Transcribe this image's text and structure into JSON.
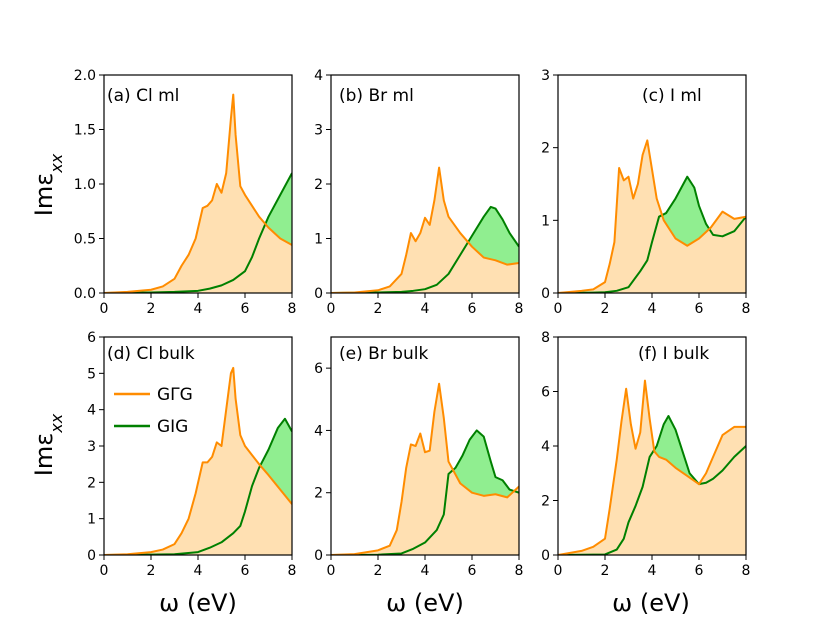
{
  "figure": {
    "xlabel": "ω (eV)",
    "ylabel_main": "Imε",
    "ylabel_sub": "xx",
    "legend": [
      {
        "label": "GΓG",
        "color": "#ff8c00"
      },
      {
        "label": "GIG",
        "color": "#008000"
      }
    ],
    "colors": {
      "orange_line": "#ff8c00",
      "orange_fill": "#ffe0b2",
      "green_line": "#008000",
      "green_fill": "#90ee90"
    }
  },
  "chart_data": [
    {
      "type": "area",
      "title": "(a) Cl ml",
      "xlim": [
        0,
        8
      ],
      "ylim": [
        0,
        2.0
      ],
      "xticks": [
        "0",
        "2",
        "4",
        "6",
        "8"
      ],
      "yticks": [
        "0.0",
        "0.5",
        "1.0",
        "1.5",
        "2.0"
      ],
      "yticks_values": [
        0,
        0.5,
        1.0,
        1.5,
        2.0
      ],
      "series": [
        {
          "name": "GΓG",
          "x": [
            0,
            1,
            2,
            2.5,
            3,
            3.3,
            3.6,
            3.9,
            4.2,
            4.4,
            4.6,
            4.8,
            5.0,
            5.2,
            5.4,
            5.5,
            5.6,
            5.8,
            6.0,
            6.3,
            6.6,
            7.0,
            7.5,
            8.0
          ],
          "values": [
            0,
            0.01,
            0.03,
            0.06,
            0.13,
            0.25,
            0.35,
            0.5,
            0.78,
            0.8,
            0.85,
            1.0,
            0.92,
            1.1,
            1.6,
            1.82,
            1.45,
            0.98,
            0.9,
            0.8,
            0.7,
            0.6,
            0.5,
            0.44
          ]
        },
        {
          "name": "GIG",
          "x": [
            0,
            2,
            3,
            4,
            4.5,
            5,
            5.5,
            6.0,
            6.3,
            6.6,
            7.0,
            7.5,
            8.0
          ],
          "values": [
            0,
            0.005,
            0.01,
            0.02,
            0.04,
            0.07,
            0.12,
            0.2,
            0.33,
            0.5,
            0.7,
            0.9,
            1.1
          ]
        }
      ]
    },
    {
      "type": "area",
      "title": "(b) Br ml",
      "xlim": [
        0,
        8
      ],
      "ylim": [
        0,
        4
      ],
      "xticks": [
        "0",
        "2",
        "4",
        "6",
        "8"
      ],
      "yticks": [
        "0",
        "1",
        "2",
        "3",
        "4"
      ],
      "yticks_values": [
        0,
        1,
        2,
        3,
        4
      ],
      "series": [
        {
          "name": "GΓG",
          "x": [
            0,
            1,
            2,
            2.5,
            3,
            3.2,
            3.4,
            3.6,
            3.8,
            4.0,
            4.2,
            4.4,
            4.6,
            4.8,
            5.0,
            5.5,
            6.0,
            6.5,
            7.0,
            7.5,
            8.0
          ],
          "values": [
            0,
            0.01,
            0.05,
            0.12,
            0.35,
            0.7,
            1.1,
            0.95,
            1.1,
            1.38,
            1.25,
            1.7,
            2.3,
            1.7,
            1.4,
            1.1,
            0.85,
            0.65,
            0.6,
            0.52,
            0.55
          ]
        },
        {
          "name": "GIG",
          "x": [
            0,
            2,
            3,
            3.5,
            4,
            4.5,
            5,
            5.5,
            6,
            6.5,
            6.8,
            7.0,
            7.3,
            7.6,
            8.0
          ],
          "values": [
            0,
            0.01,
            0.02,
            0.04,
            0.07,
            0.15,
            0.35,
            0.7,
            1.05,
            1.4,
            1.58,
            1.55,
            1.35,
            1.1,
            0.85
          ]
        }
      ]
    },
    {
      "type": "area",
      "title": "(c) I ml",
      "xlim": [
        0,
        8
      ],
      "ylim": [
        0,
        3
      ],
      "xticks": [
        "0",
        "2",
        "4",
        "6",
        "8"
      ],
      "yticks": [
        "0",
        "1",
        "2",
        "3"
      ],
      "yticks_values": [
        0,
        1,
        2,
        3
      ],
      "series": [
        {
          "name": "GΓG",
          "x": [
            0,
            1,
            1.5,
            2,
            2.2,
            2.4,
            2.6,
            2.8,
            3.0,
            3.2,
            3.4,
            3.6,
            3.8,
            4.0,
            4.2,
            4.5,
            5.0,
            5.5,
            6.0,
            6.5,
            7.0,
            7.5,
            8.0
          ],
          "values": [
            0,
            0.03,
            0.05,
            0.15,
            0.4,
            0.7,
            1.72,
            1.55,
            1.6,
            1.3,
            1.5,
            1.9,
            2.1,
            1.7,
            1.3,
            1.0,
            0.75,
            0.65,
            0.75,
            0.9,
            1.12,
            1.02,
            1.05
          ]
        },
        {
          "name": "GIG",
          "x": [
            0,
            1.5,
            2,
            2.5,
            3,
            3.5,
            3.8,
            4.0,
            4.3,
            4.6,
            5.0,
            5.5,
            5.8,
            6.0,
            6.3,
            6.6,
            7.0,
            7.5,
            8.0
          ],
          "values": [
            0,
            0.005,
            0.01,
            0.03,
            0.08,
            0.3,
            0.45,
            0.7,
            1.05,
            1.1,
            1.3,
            1.6,
            1.45,
            1.2,
            0.95,
            0.8,
            0.78,
            0.85,
            1.05
          ]
        }
      ]
    },
    {
      "type": "area",
      "title": "(d) Cl bulk",
      "xlim": [
        0,
        8
      ],
      "ylim": [
        0,
        6
      ],
      "xticks": [
        "0",
        "2",
        "4",
        "6",
        "8"
      ],
      "yticks": [
        "0",
        "1",
        "2",
        "3",
        "4",
        "5",
        "6"
      ],
      "yticks_values": [
        0,
        1,
        2,
        3,
        4,
        5,
        6
      ],
      "series": [
        {
          "name": "GΓG",
          "x": [
            0,
            1,
            2,
            2.5,
            3,
            3.3,
            3.6,
            3.9,
            4.2,
            4.4,
            4.6,
            4.8,
            5.0,
            5.2,
            5.4,
            5.5,
            5.6,
            5.8,
            6.0,
            6.3,
            6.6,
            7.0,
            7.5,
            8.0
          ],
          "values": [
            0,
            0.02,
            0.08,
            0.15,
            0.3,
            0.6,
            1.0,
            1.7,
            2.55,
            2.55,
            2.7,
            3.1,
            3.0,
            4.0,
            5.0,
            5.15,
            4.3,
            3.3,
            3.0,
            2.75,
            2.5,
            2.2,
            1.8,
            1.4
          ]
        },
        {
          "name": "GIG",
          "x": [
            0,
            2,
            3,
            4,
            4.5,
            5,
            5.5,
            5.8,
            6.0,
            6.3,
            6.6,
            7.0,
            7.4,
            7.7,
            8.0
          ],
          "values": [
            0,
            0.01,
            0.02,
            0.08,
            0.2,
            0.35,
            0.6,
            0.8,
            1.2,
            1.9,
            2.4,
            2.9,
            3.5,
            3.75,
            3.4
          ]
        }
      ]
    },
    {
      "type": "area",
      "title": "(e) Br bulk",
      "xlim": [
        0,
        8
      ],
      "ylim": [
        0,
        7
      ],
      "xticks": [
        "0",
        "2",
        "4",
        "6",
        "8"
      ],
      "yticks": [
        "0",
        "2",
        "4",
        "6"
      ],
      "yticks_values": [
        0,
        2,
        4,
        6
      ],
      "series": [
        {
          "name": "GΓG",
          "x": [
            0,
            1,
            2,
            2.5,
            2.8,
            3.0,
            3.2,
            3.4,
            3.6,
            3.8,
            4.0,
            4.2,
            4.4,
            4.6,
            4.8,
            5.0,
            5.5,
            6.0,
            6.5,
            7.0,
            7.5,
            8.0
          ],
          "values": [
            0,
            0.03,
            0.15,
            0.3,
            0.8,
            1.7,
            2.8,
            3.55,
            3.5,
            3.9,
            3.3,
            3.35,
            4.6,
            5.5,
            4.4,
            3.0,
            2.3,
            2.0,
            1.9,
            1.95,
            1.85,
            2.2
          ]
        },
        {
          "name": "GIG",
          "x": [
            0,
            2,
            3,
            3.5,
            4,
            4.5,
            4.8,
            5.0,
            5.3,
            5.6,
            5.9,
            6.2,
            6.5,
            6.8,
            7.0,
            7.3,
            7.6,
            8.0
          ],
          "values": [
            0,
            0.01,
            0.05,
            0.2,
            0.4,
            0.8,
            1.3,
            2.6,
            2.8,
            3.2,
            3.7,
            4.0,
            3.8,
            3.0,
            2.5,
            2.4,
            2.1,
            2.0
          ]
        }
      ]
    },
    {
      "type": "area",
      "title": "(f) I bulk",
      "xlim": [
        0,
        8
      ],
      "ylim": [
        0,
        8
      ],
      "xticks": [
        "0",
        "2",
        "4",
        "6",
        "8"
      ],
      "yticks": [
        "0",
        "2",
        "4",
        "6",
        "8"
      ],
      "yticks_values": [
        0,
        2,
        4,
        6,
        8
      ],
      "series": [
        {
          "name": "GΓG",
          "x": [
            0,
            1,
            1.5,
            2,
            2.2,
            2.5,
            2.7,
            2.9,
            3.1,
            3.3,
            3.5,
            3.7,
            3.9,
            4.1,
            4.3,
            4.6,
            5.0,
            5.5,
            6.0,
            6.3,
            6.6,
            7.0,
            7.5,
            8.0
          ],
          "values": [
            0,
            0.15,
            0.3,
            0.6,
            1.7,
            3.5,
            4.9,
            6.1,
            4.8,
            3.9,
            4.5,
            6.4,
            5.0,
            3.8,
            3.6,
            3.5,
            3.2,
            2.9,
            2.6,
            3.0,
            3.6,
            4.4,
            4.7,
            4.7
          ]
        },
        {
          "name": "GIG",
          "x": [
            0,
            2,
            2.5,
            2.8,
            3.0,
            3.3,
            3.6,
            3.9,
            4.2,
            4.5,
            4.7,
            5.0,
            5.3,
            5.6,
            6.0,
            6.3,
            6.6,
            7.0,
            7.5,
            8.0
          ],
          "values": [
            0,
            0.02,
            0.2,
            0.6,
            1.2,
            1.8,
            2.5,
            3.6,
            4.0,
            4.8,
            5.1,
            4.6,
            3.8,
            3.0,
            2.6,
            2.65,
            2.8,
            3.1,
            3.6,
            4.0
          ]
        }
      ]
    }
  ]
}
